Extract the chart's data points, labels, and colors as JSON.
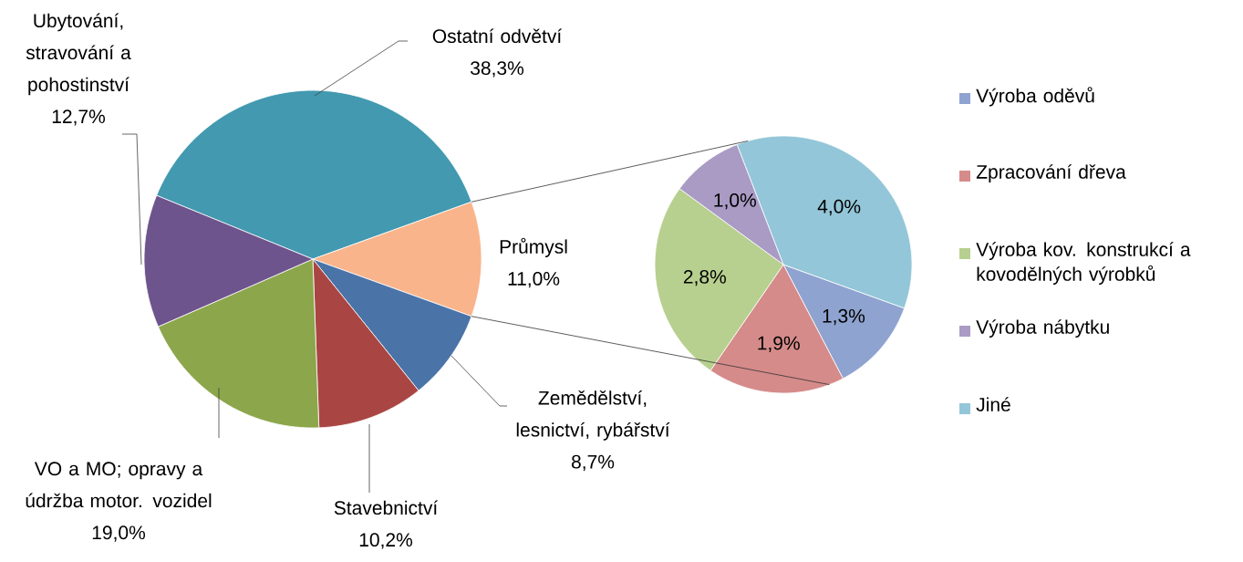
{
  "chart_data": [
    {
      "type": "pie",
      "categories": [
        "Ostatní odvětví",
        "Průmysl",
        "Zemědělství, lesnictví, rybářství",
        "Stavebnictví",
        "VO a MO; opravy a údržba motor. vozidel",
        "Ubytování, stravování a pohostinství"
      ],
      "values": [
        38.3,
        11.0,
        8.7,
        10.2,
        19.0,
        12.7
      ],
      "value_labels": [
        "38,3%",
        "11,0%",
        "8,7%",
        "10,2%",
        "19,0%",
        "12,7%"
      ],
      "colors": [
        "#4299b0",
        "#f9b48b",
        "#4a73a8",
        "#a94643",
        "#8ca64b",
        "#6e548d"
      ]
    },
    {
      "type": "pie",
      "categories": [
        "Výroba oděvů",
        "Zpracování dřeva",
        "Výroba kov. konstrukcí a kovodělných výrobků",
        "Výroba nábytku",
        "Jiné"
      ],
      "values": [
        1.3,
        1.9,
        2.8,
        1.0,
        4.0
      ],
      "value_labels": [
        "1,3%",
        "1,9%",
        "2,8%",
        "1,0%",
        "4,0%"
      ],
      "colors": [
        "#8fa3d0",
        "#d58b8a",
        "#b7d08f",
        "#a99bc4",
        "#93c6d8"
      ],
      "legend": "right"
    }
  ]
}
